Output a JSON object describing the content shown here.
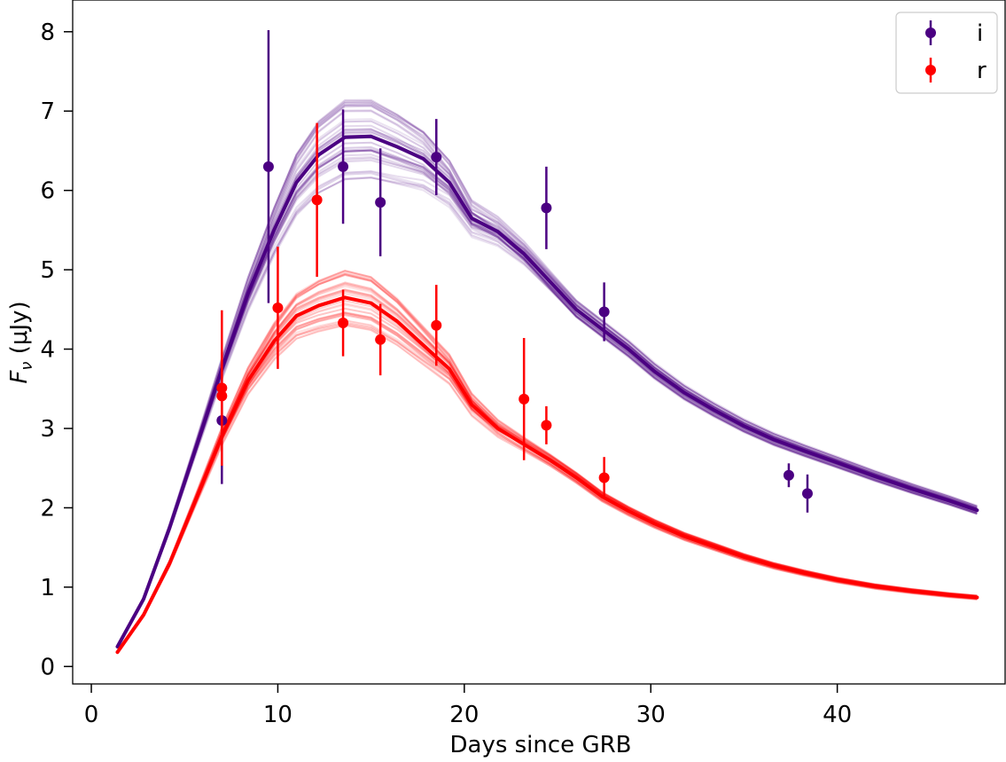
{
  "chart_data": {
    "type": "line",
    "title": "",
    "xlabel": "Days since GRB",
    "ylabel_main": "F",
    "ylabel_sub": "ν",
    "ylabel_unit": " (μJy)",
    "xlim": [
      -1.0,
      49.0
    ],
    "ylim": [
      -0.22,
      8.4
    ],
    "xticks": [
      0,
      10,
      20,
      30,
      40
    ],
    "yticks": [
      0,
      1,
      2,
      3,
      4,
      5,
      6,
      7,
      8
    ],
    "grid": false,
    "legend_position": "top-right",
    "series": [
      {
        "name": "i",
        "color": "#4b0082",
        "model_x": [
          1.4,
          2.8,
          4.2,
          5.6,
          7.0,
          8.4,
          9.8,
          11.0,
          12.2,
          13.6,
          15.0,
          16.4,
          17.8,
          19.2,
          20.4,
          21.8,
          23.2,
          24.6,
          26.0,
          27.4,
          28.8,
          30.2,
          31.8,
          33.4,
          35.0,
          36.6,
          38.2,
          40.0,
          42.0,
          44.0,
          46.0,
          47.5
        ],
        "model_y": [
          0.25,
          0.85,
          1.75,
          2.75,
          3.75,
          4.7,
          5.5,
          6.1,
          6.45,
          6.67,
          6.68,
          6.55,
          6.4,
          6.1,
          5.65,
          5.48,
          5.2,
          4.85,
          4.5,
          4.25,
          4.0,
          3.72,
          3.45,
          3.23,
          3.03,
          2.86,
          2.72,
          2.57,
          2.4,
          2.24,
          2.09,
          1.97
        ],
        "points": [
          {
            "x": 7.0,
            "y": 3.1,
            "err": 0.8
          },
          {
            "x": 9.5,
            "y": 6.3,
            "err": 1.72
          },
          {
            "x": 13.5,
            "y": 6.3,
            "err": 0.72
          },
          {
            "x": 15.5,
            "y": 5.85,
            "err": 0.68
          },
          {
            "x": 18.5,
            "y": 6.42,
            "err": 0.48
          },
          {
            "x": 24.4,
            "y": 5.78,
            "err": 0.52
          },
          {
            "x": 27.5,
            "y": 4.47,
            "err": 0.37
          },
          {
            "x": 37.4,
            "y": 2.41,
            "err": 0.15
          },
          {
            "x": 38.4,
            "y": 2.18,
            "err": 0.24
          }
        ]
      },
      {
        "name": "r",
        "color": "#ff0000",
        "model_x": [
          1.4,
          2.8,
          4.2,
          5.6,
          7.0,
          8.4,
          9.8,
          11.0,
          12.2,
          13.6,
          15.0,
          16.4,
          17.8,
          19.2,
          20.4,
          21.8,
          23.2,
          24.6,
          26.0,
          27.4,
          28.8,
          30.2,
          31.8,
          33.4,
          35.0,
          36.6,
          38.2,
          40.0,
          42.0,
          44.0,
          46.0,
          47.5
        ],
        "model_y": [
          0.18,
          0.65,
          1.3,
          2.1,
          2.9,
          3.6,
          4.1,
          4.42,
          4.55,
          4.65,
          4.58,
          4.35,
          4.05,
          3.75,
          3.3,
          3.0,
          2.8,
          2.6,
          2.38,
          2.14,
          1.96,
          1.8,
          1.64,
          1.51,
          1.38,
          1.27,
          1.18,
          1.09,
          1.01,
          0.95,
          0.9,
          0.87
        ],
        "points": [
          {
            "x": 7.0,
            "y": 3.51,
            "err": 0.98
          },
          {
            "x": 7.0,
            "y": 3.41,
            "err": 0.55
          },
          {
            "x": 10.0,
            "y": 4.52,
            "err": 0.77
          },
          {
            "x": 12.1,
            "y": 5.88,
            "err": 0.97
          },
          {
            "x": 13.5,
            "y": 4.33,
            "err": 0.42
          },
          {
            "x": 15.5,
            "y": 4.12,
            "err": 0.45
          },
          {
            "x": 18.5,
            "y": 4.3,
            "err": 0.51
          },
          {
            "x": 23.2,
            "y": 3.37,
            "err": 0.77
          },
          {
            "x": 24.4,
            "y": 3.04,
            "err": 0.24
          },
          {
            "x": 27.5,
            "y": 2.38,
            "err": 0.26
          }
        ]
      }
    ]
  }
}
